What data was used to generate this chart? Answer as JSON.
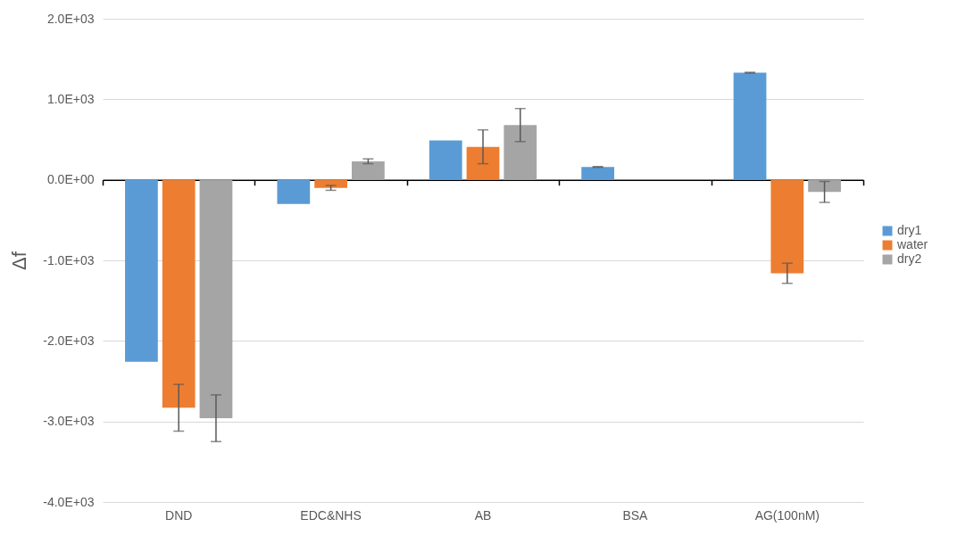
{
  "chart_data": {
    "type": "bar",
    "ylabel": "Δf",
    "categories": [
      "DND",
      "EDC&NHS",
      "AB",
      "BSA",
      "AG(100nM)"
    ],
    "series": [
      {
        "name": "dry1",
        "color": "#5b9bd5",
        "values": [
          -2260,
          -300,
          490,
          160,
          1330
        ],
        "errors": [
          null,
          null,
          null,
          5,
          5
        ]
      },
      {
        "name": "water",
        "color": "#ed7d31",
        "values": [
          -2830,
          -100,
          410,
          null,
          -1160
        ],
        "errors": [
          290,
          30,
          210,
          null,
          125
        ]
      },
      {
        "name": "dry2",
        "color": "#a5a5a5",
        "values": [
          -2960,
          230,
          680,
          null,
          -150
        ],
        "errors": [
          290,
          30,
          205,
          null,
          130
        ]
      }
    ],
    "ylim": [
      -4000,
      2000
    ],
    "yticks": [
      {
        "value": -4000,
        "label": "-4.0E+03"
      },
      {
        "value": -3000,
        "label": "-3.0E+03"
      },
      {
        "value": -2000,
        "label": "-2.0E+03"
      },
      {
        "value": -1000,
        "label": "-1.0E+03"
      },
      {
        "value": 0,
        "label": "0.0E+00"
      },
      {
        "value": 1000,
        "label": "1.0E+03"
      },
      {
        "value": 2000,
        "label": "2.0E+03"
      }
    ],
    "grid": "y",
    "legend": "right"
  }
}
